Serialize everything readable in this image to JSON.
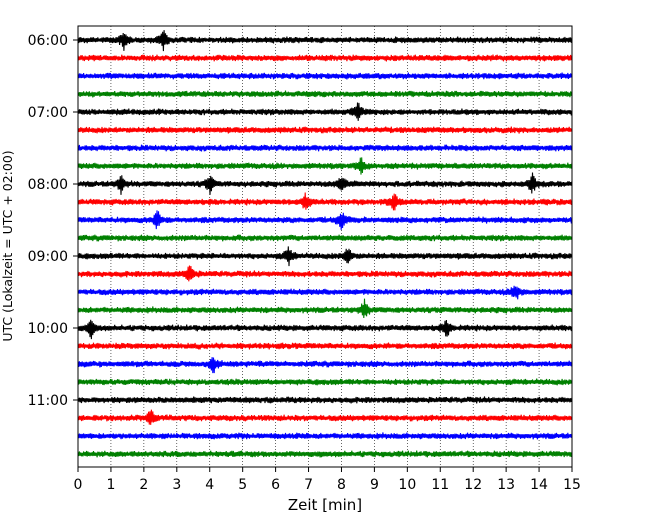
{
  "chart_data": {
    "type": "line",
    "title": "",
    "xlabel": "Zeit  [min]",
    "ylabel": "UTC (Lokalzeit = UTC + 02:00)",
    "xlim": [
      0,
      15
    ],
    "x_ticks": [
      "0",
      "1",
      "2",
      "3",
      "4",
      "5",
      "6",
      "7",
      "8",
      "9",
      "10",
      "11",
      "12",
      "13",
      "14",
      "15"
    ],
    "y_ticks": [
      "06:00",
      "07:00",
      "08:00",
      "09:00",
      "10:00",
      "11:00"
    ],
    "grid": "vertical dotted",
    "trace_colors": [
      "#000000",
      "#ff0000",
      "#0000ff",
      "#008000"
    ],
    "traces": [
      {
        "start": "06:00",
        "color": "#000000",
        "events_min": [
          1.4,
          2.6
        ]
      },
      {
        "start": "06:15",
        "color": "#ff0000",
        "events_min": []
      },
      {
        "start": "06:30",
        "color": "#0000ff",
        "events_min": []
      },
      {
        "start": "06:45",
        "color": "#008000",
        "events_min": []
      },
      {
        "start": "07:00",
        "color": "#000000",
        "events_min": [
          8.5
        ]
      },
      {
        "start": "07:15",
        "color": "#ff0000",
        "events_min": []
      },
      {
        "start": "07:30",
        "color": "#0000ff",
        "events_min": []
      },
      {
        "start": "07:45",
        "color": "#008000",
        "events_min": [
          8.6
        ]
      },
      {
        "start": "08:00",
        "color": "#000000",
        "events_min": [
          1.3,
          4.0,
          8.0,
          13.8
        ]
      },
      {
        "start": "08:15",
        "color": "#ff0000",
        "events_min": [
          6.9,
          9.6
        ]
      },
      {
        "start": "08:30",
        "color": "#0000ff",
        "events_min": [
          2.4,
          8.0
        ]
      },
      {
        "start": "08:45",
        "color": "#008000",
        "events_min": []
      },
      {
        "start": "09:00",
        "color": "#000000",
        "events_min": [
          6.4,
          8.2
        ]
      },
      {
        "start": "09:15",
        "color": "#ff0000",
        "events_min": [
          3.4
        ]
      },
      {
        "start": "09:30",
        "color": "#0000ff",
        "events_min": [
          13.3
        ]
      },
      {
        "start": "09:45",
        "color": "#008000",
        "events_min": [
          8.7
        ]
      },
      {
        "start": "10:00",
        "color": "#000000",
        "events_min": [
          0.4,
          11.2
        ]
      },
      {
        "start": "10:15",
        "color": "#ff0000",
        "events_min": []
      },
      {
        "start": "10:30",
        "color": "#0000ff",
        "events_min": [
          4.1
        ]
      },
      {
        "start": "10:45",
        "color": "#008000",
        "events_min": []
      },
      {
        "start": "11:00",
        "color": "#000000",
        "events_min": []
      },
      {
        "start": "11:15",
        "color": "#ff0000",
        "events_min": [
          2.2
        ]
      },
      {
        "start": "11:30",
        "color": "#0000ff",
        "events_min": []
      },
      {
        "start": "11:45",
        "color": "#008000",
        "events_min": []
      }
    ]
  }
}
